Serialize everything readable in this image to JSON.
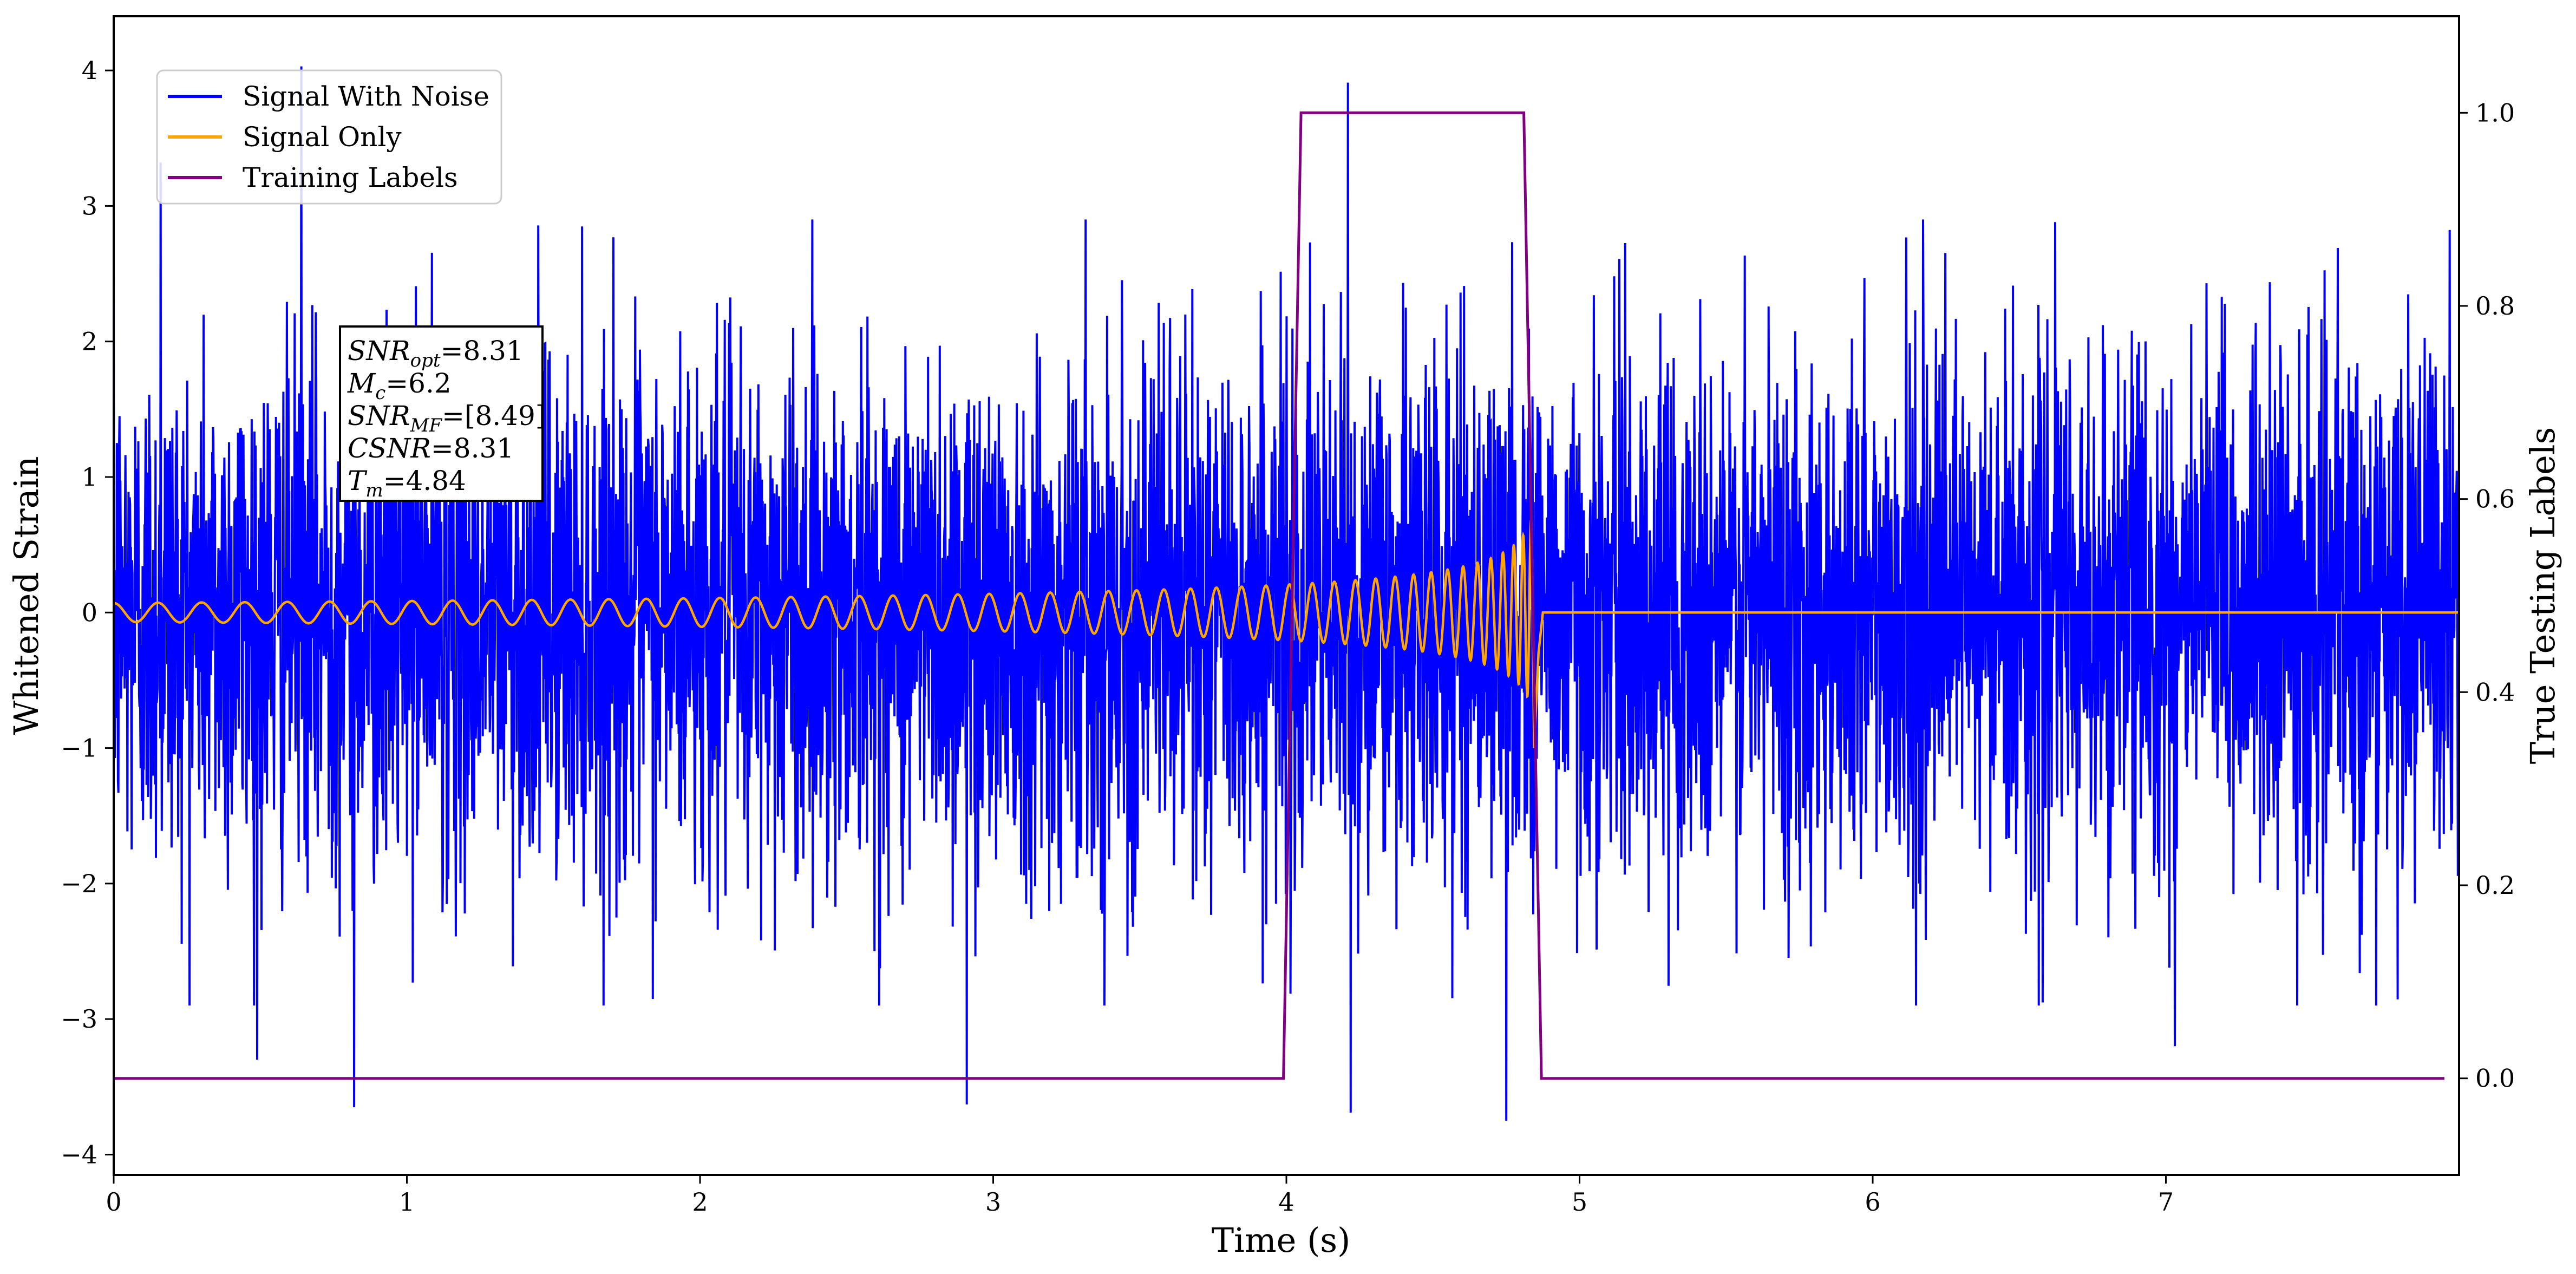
{
  "chart_data": {
    "type": "line",
    "xlabel": "Time (s)",
    "ylabel": "Whitened Strain",
    "y2label": "True Testing Labels",
    "xlim": [
      0,
      8.0
    ],
    "ylim": [
      -4.15,
      4.4
    ],
    "y2lim": [
      -0.1,
      1.1
    ],
    "xticks": [
      0,
      1,
      2,
      3,
      4,
      5,
      6,
      7
    ],
    "yticks": [
      -4,
      -3,
      -2,
      -1,
      0,
      1,
      2,
      3,
      4
    ],
    "yticklabels": [
      "−4",
      "−3",
      "−2",
      "−1",
      "0",
      "1",
      "2",
      "3",
      "4"
    ],
    "y2ticks": [
      0.0,
      0.2,
      0.4,
      0.6,
      0.8,
      1.0
    ],
    "y2ticklabels": [
      "0.0",
      "0.2",
      "0.4",
      "0.6",
      "0.8",
      "1.0"
    ],
    "grid": false,
    "legend_position": "top-left",
    "series": [
      {
        "name": "Signal With Noise",
        "color": "#0000ff",
        "axis": "left",
        "description_values": {
          "x_range": [
            0,
            8.0
          ],
          "typical_amplitude": 1.0,
          "min": -3.75,
          "max": 4.03,
          "notable_peaks": [
            {
              "x": 0.64,
              "y": 4.03
            },
            {
              "x": 4.21,
              "y": 3.91
            },
            {
              "x": 0.16,
              "y": 3.32
            },
            {
              "x": 4.75,
              "y": -3.75
            },
            {
              "x": 0.82,
              "y": -3.65
            },
            {
              "x": 2.91,
              "y": -3.63
            },
            {
              "x": 4.22,
              "y": -3.69
            },
            {
              "x": 0.49,
              "y": -3.3
            },
            {
              "x": 7.03,
              "y": -3.2
            }
          ]
        }
      },
      {
        "name": "Signal Only",
        "color": "#ffa500",
        "axis": "left",
        "chirp": {
          "start_time": 0,
          "merger_time": 4.84,
          "start_amplitude": 0.07,
          "peak_amplitude": 0.72,
          "min_after_merger": -1.0,
          "after_merger_value": 0
        }
      },
      {
        "name": "Training Labels",
        "color": "#800080",
        "axis": "right",
        "x": [
          0,
          3.99,
          4.05,
          4.81,
          4.87,
          7.95
        ],
        "y": [
          0,
          0,
          1,
          1,
          0,
          0
        ]
      }
    ],
    "annotation": {
      "lines": [
        {
          "label": "SNR",
          "sub": "opt",
          "value": "=8.31"
        },
        {
          "label": "M",
          "sub": "c",
          "value": "=6.2"
        },
        {
          "label": "SNR",
          "sub": "MF",
          "value": "=[8.49]"
        },
        {
          "label": "CSNR",
          "sub": "",
          "value": "=8.31"
        },
        {
          "label": "T",
          "sub": "m",
          "value": "=4.84"
        }
      ]
    }
  }
}
